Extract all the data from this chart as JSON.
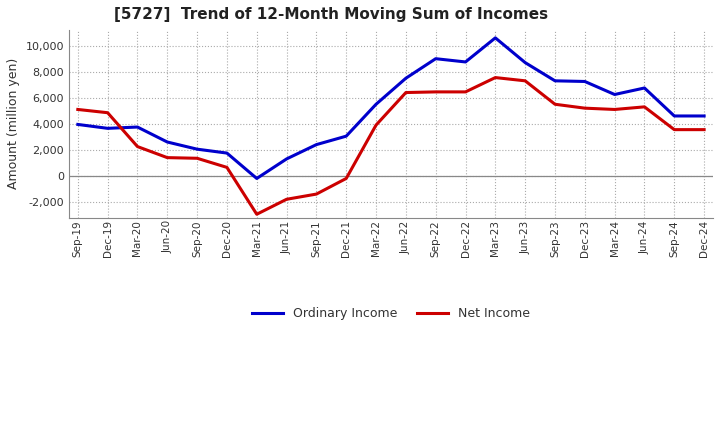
{
  "title": "[5727]  Trend of 12-Month Moving Sum of Incomes",
  "ylabel": "Amount (million yen)",
  "legend_labels": [
    "Ordinary Income",
    "Net Income"
  ],
  "line_colors": [
    "#0000CC",
    "#CC0000"
  ],
  "line_width": 2.2,
  "background_color": "#FFFFFF",
  "plot_bg_color": "#FFFFFF",
  "grid_color": "#AAAAAA",
  "ylim": [
    -3200,
    11200
  ],
  "yticks": [
    -2000,
    0,
    2000,
    4000,
    6000,
    8000,
    10000
  ],
  "dates": [
    "Sep-19",
    "Dec-19",
    "Mar-20",
    "Jun-20",
    "Sep-20",
    "Dec-20",
    "Mar-21",
    "Jun-21",
    "Sep-21",
    "Dec-21",
    "Mar-22",
    "Jun-22",
    "Sep-22",
    "Dec-22",
    "Mar-23",
    "Jun-23",
    "Sep-23",
    "Dec-23",
    "Mar-24",
    "Jun-24",
    "Sep-24",
    "Dec-24"
  ],
  "ordinary_income": [
    3950,
    3650,
    3750,
    2600,
    2050,
    1750,
    -200,
    1300,
    2400,
    3050,
    5500,
    7500,
    9000,
    8750,
    10600,
    8700,
    7300,
    7250,
    6250,
    6750,
    4600,
    4600
  ],
  "net_income": [
    5100,
    4850,
    2250,
    1400,
    1350,
    650,
    -2950,
    -1800,
    -1400,
    -200,
    3900,
    6400,
    6450,
    6450,
    7550,
    7300,
    5500,
    5200,
    5100,
    5300,
    3550,
    3550
  ]
}
